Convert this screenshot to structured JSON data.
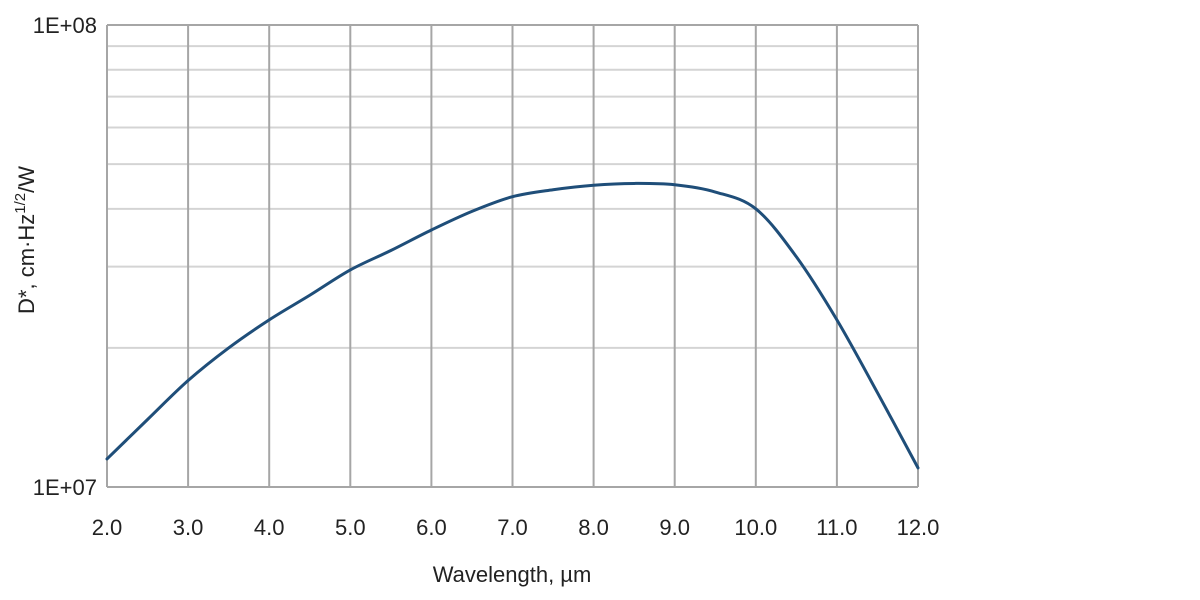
{
  "chart_data": {
    "type": "line",
    "title": "",
    "xlabel": "Wavelength, µm",
    "ylabel": {
      "main": "D*, cm·Hz",
      "sup": "1/2",
      "tail": "/W"
    },
    "x_scale": "linear",
    "y_scale": "log",
    "xlim": [
      2.0,
      12.0
    ],
    "ylim": [
      10000000,
      100000000
    ],
    "x_ticks": [
      "2.0",
      "3.0",
      "4.0",
      "5.0",
      "6.0",
      "7.0",
      "8.0",
      "9.0",
      "10.0",
      "11.0",
      "12.0"
    ],
    "y_ticks": [
      "1E+07",
      "1E+08"
    ],
    "grid": true,
    "legend": "none",
    "series": [
      {
        "color": "#1f4e79",
        "x": [
          2.0,
          2.5,
          3.0,
          3.5,
          4.0,
          4.5,
          5.0,
          5.5,
          6.0,
          6.5,
          7.0,
          7.5,
          8.0,
          8.5,
          9.0,
          9.5,
          10.0,
          10.5,
          11.0,
          11.5,
          12.0
        ],
        "y": [
          11500000,
          14000000,
          17000000,
          20000000,
          23000000,
          26000000,
          29500000,
          32500000,
          36000000,
          39500000,
          42500000,
          44000000,
          45000000,
          45400000,
          45100000,
          43500000,
          40000000,
          31500000,
          23000000,
          16000000,
          11000000
        ]
      }
    ]
  },
  "style": {
    "line_color": "#1f4e79",
    "grid_minor_color": "#d4d4d4",
    "grid_major_color": "#a6a6a6",
    "text_color": "#222222"
  }
}
